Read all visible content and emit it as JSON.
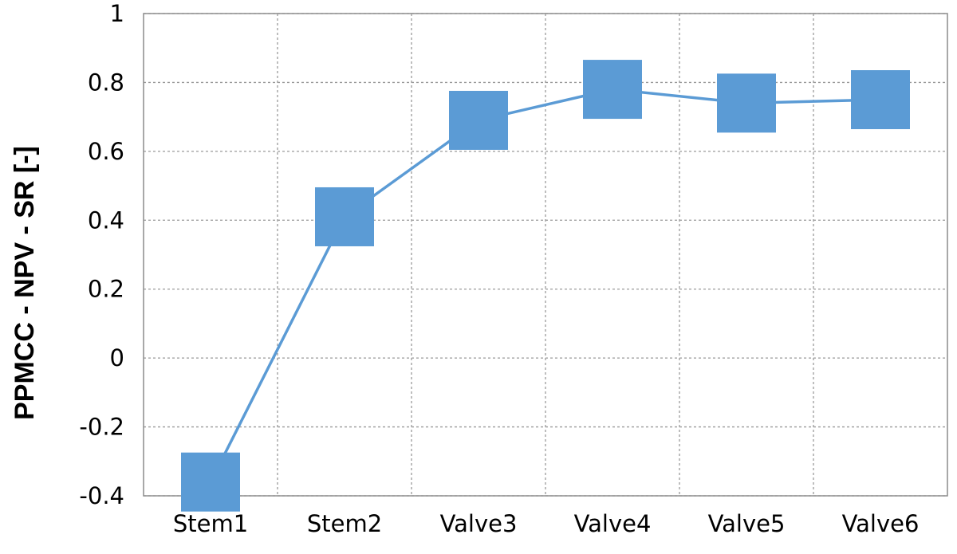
{
  "chart_data": {
    "type": "line",
    "title": "",
    "xlabel": "",
    "ylabel": "PPMCC - NPV - SR [-]",
    "categories": [
      "Stem1",
      "Stem2",
      "Valve3",
      "Valve4",
      "Valve5",
      "Valve6"
    ],
    "series": [
      {
        "values": [
          -0.36,
          0.41,
          0.69,
          0.78,
          0.74,
          0.75
        ],
        "color": "#5B9BD5",
        "marker": "square"
      }
    ],
    "ylim": [
      -0.4,
      1
    ],
    "yticks": [
      1,
      0.8,
      0.6,
      0.4,
      0.2,
      0,
      -0.2,
      -0.4
    ],
    "ytick_labels": [
      "1",
      "0.8",
      "0.6",
      "0.4",
      "0.2",
      "0",
      "-0.2",
      "-0.4"
    ],
    "grid": true,
    "legend": "none"
  }
}
